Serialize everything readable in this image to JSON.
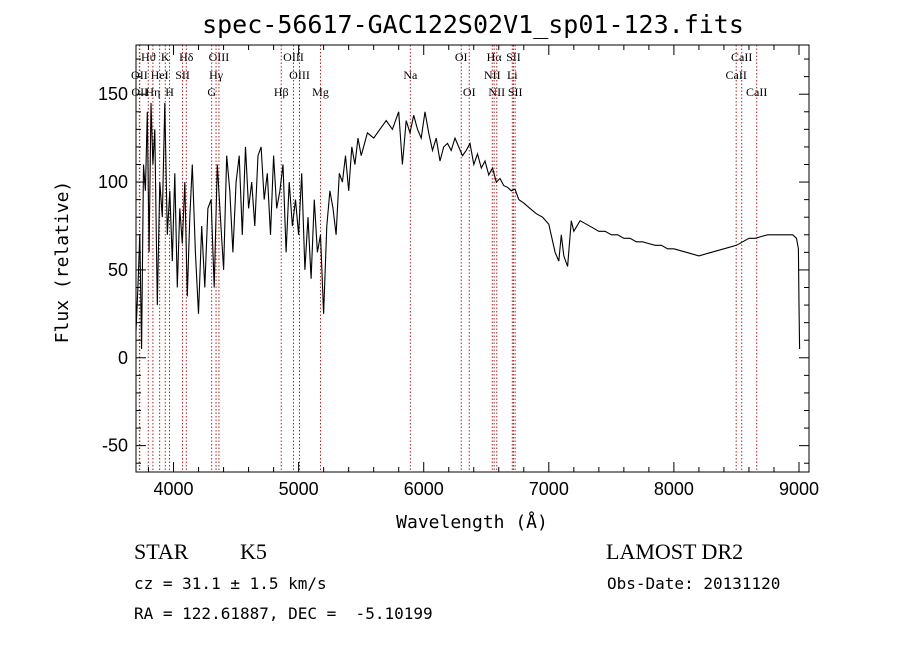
{
  "chart_data": {
    "type": "line",
    "title": "spec-56617-GAC122S02V1_sp01-123.fits",
    "xlabel": "Wavelength (Å)",
    "ylabel": "Flux (relative)",
    "xlim": [
      3700,
      9080
    ],
    "ylim": [
      -65,
      178
    ],
    "xticks": [
      4000,
      5000,
      6000,
      7000,
      8000,
      9000
    ],
    "yticks": [
      -50,
      0,
      50,
      100,
      150
    ],
    "grid": false,
    "series": [
      {
        "color": "#000000",
        "x": [
          3700,
          3715,
          3730,
          3745,
          3760,
          3775,
          3790,
          3805,
          3820,
          3835,
          3850,
          3870,
          3890,
          3910,
          3930,
          3950,
          3970,
          3990,
          4010,
          4030,
          4050,
          4070,
          4090,
          4110,
          4130,
          4150,
          4175,
          4200,
          4225,
          4250,
          4275,
          4300,
          4325,
          4350,
          4375,
          4400,
          4425,
          4450,
          4475,
          4500,
          4525,
          4550,
          4575,
          4600,
          4625,
          4650,
          4675,
          4700,
          4725,
          4750,
          4775,
          4800,
          4825,
          4850,
          4875,
          4900,
          4925,
          4950,
          4975,
          5000,
          5025,
          5050,
          5075,
          5100,
          5125,
          5150,
          5175,
          5200,
          5225,
          5250,
          5275,
          5300,
          5325,
          5350,
          5375,
          5400,
          5425,
          5450,
          5475,
          5500,
          5550,
          5600,
          5650,
          5700,
          5750,
          5800,
          5830,
          5860,
          5890,
          5920,
          5950,
          5980,
          6010,
          6040,
          6070,
          6100,
          6130,
          6160,
          6190,
          6220,
          6250,
          6280,
          6310,
          6340,
          6370,
          6400,
          6430,
          6460,
          6490,
          6520,
          6550,
          6580,
          6610,
          6640,
          6670,
          6700,
          6730,
          6760,
          6800,
          6850,
          6900,
          6950,
          7000,
          7050,
          7080,
          7100,
          7120,
          7150,
          7180,
          7200,
          7250,
          7300,
          7350,
          7400,
          7450,
          7500,
          7550,
          7600,
          7650,
          7700,
          7750,
          7800,
          7850,
          7900,
          7950,
          8000,
          8100,
          8200,
          8300,
          8400,
          8500,
          8550,
          8600,
          8650,
          8700,
          8750,
          8800,
          8850,
          8900,
          8950,
          8980,
          8995,
          9000,
          9005
        ],
        "values": [
          15,
          40,
          70,
          5,
          110,
          95,
          140,
          60,
          145,
          110,
          130,
          30,
          100,
          80,
          145,
          70,
          95,
          55,
          105,
          40,
          85,
          65,
          100,
          35,
          80,
          110,
          60,
          25,
          75,
          40,
          85,
          90,
          40,
          110,
          80,
          50,
          115,
          95,
          60,
          100,
          115,
          70,
          120,
          85,
          100,
          75,
          115,
          120,
          90,
          105,
          70,
          115,
          85,
          95,
          110,
          60,
          100,
          75,
          90,
          70,
          105,
          50,
          80,
          45,
          90,
          60,
          70,
          25,
          75,
          95,
          85,
          70,
          105,
          100,
          115,
          95,
          120,
          110,
          125,
          115,
          128,
          125,
          130,
          135,
          130,
          140,
          110,
          135,
          128,
          138,
          130,
          125,
          140,
          128,
          118,
          125,
          112,
          120,
          122,
          118,
          125,
          120,
          115,
          118,
          122,
          110,
          116,
          108,
          112,
          104,
          108,
          100,
          102,
          98,
          97,
          95,
          96,
          90,
          88,
          85,
          82,
          80,
          76,
          60,
          55,
          70,
          58,
          52,
          78,
          72,
          78,
          76,
          74,
          72,
          72,
          70,
          70,
          68,
          68,
          66,
          66,
          65,
          64,
          64,
          62,
          62,
          60,
          58,
          60,
          62,
          64,
          66,
          68,
          68,
          69,
          70,
          70,
          70,
          70,
          70,
          68,
          62,
          30,
          5
        ]
      }
    ]
  },
  "spectral_lines": [
    {
      "label": "Hϑ",
      "wl": 3798,
      "row": 1
    },
    {
      "label": "K",
      "wl": 3934,
      "row": 1
    },
    {
      "label": "Hδ",
      "wl": 4102,
      "row": 1
    },
    {
      "label": "OIII",
      "wl": 4363,
      "row": 1
    },
    {
      "label": "OIII",
      "wl": 4959,
      "row": 1
    },
    {
      "label": "OI",
      "wl": 6300,
      "row": 1
    },
    {
      "label": "Hα",
      "wl": 6563,
      "row": 1
    },
    {
      "label": "SII",
      "wl": 6717,
      "row": 1
    },
    {
      "label": "CaII",
      "wl": 8542,
      "row": 1
    },
    {
      "label": "OII",
      "wl": 3727,
      "row": 2
    },
    {
      "label": "HeI",
      "wl": 3889,
      "row": 2
    },
    {
      "label": "SII",
      "wl": 4072,
      "row": 2
    },
    {
      "label": "Hγ",
      "wl": 4340,
      "row": 2
    },
    {
      "label": "OIII",
      "wl": 5007,
      "row": 2
    },
    {
      "label": "Na",
      "wl": 5893,
      "row": 2
    },
    {
      "label": "NII",
      "wl": 6548,
      "row": 2
    },
    {
      "label": "Li",
      "wl": 6708,
      "row": 2
    },
    {
      "label": "CaII",
      "wl": 8498,
      "row": 2
    },
    {
      "label": "OII",
      "wl": 3730,
      "row": 3
    },
    {
      "label": "Hη",
      "wl": 3835,
      "row": 3
    },
    {
      "label": "H",
      "wl": 3968,
      "row": 3
    },
    {
      "label": "G",
      "wl": 4305,
      "row": 3
    },
    {
      "label": "Hβ",
      "wl": 4861,
      "row": 3
    },
    {
      "label": "Mg",
      "wl": 5175,
      "row": 3
    },
    {
      "label": "OI",
      "wl": 6364,
      "row": 3
    },
    {
      "label": "NII",
      "wl": 6584,
      "row": 3
    },
    {
      "label": "SII",
      "wl": 6731,
      "row": 3
    },
    {
      "label": "CaII",
      "wl": 8662,
      "row": 3
    }
  ],
  "info": {
    "class": "STAR",
    "subclass": "K5",
    "survey": "LAMOST DR2",
    "cz": "cz = 31.1 ± 1.5 km/s",
    "obs_date": "Obs-Date: 20131120",
    "radec": "RA = 122.61887, DEC =  -5.10199"
  }
}
